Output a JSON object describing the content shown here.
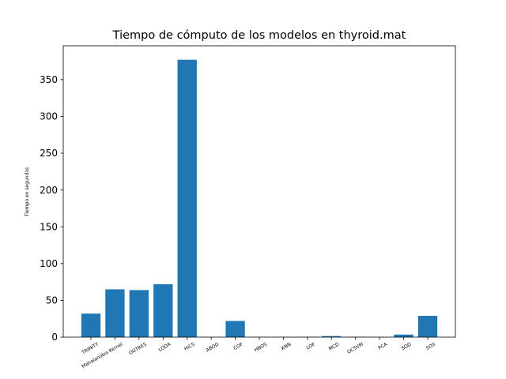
{
  "chart_data": {
    "type": "bar",
    "title": "Tiempo de cómputo de los modelos en thyroid.mat",
    "xlabel": "",
    "ylabel": "Tiempo en segundos",
    "categories": [
      "TRINITY",
      "Mahalanobis Kernel",
      "OUTRES",
      "LODA",
      "HiCS",
      "ABOD",
      "COF",
      "HBOS",
      "KNN",
      "LOF",
      "MCD",
      "OCSVM",
      "PCA",
      "SOD",
      "SOS"
    ],
    "values": [
      32,
      65,
      64,
      72,
      377,
      0.2,
      22,
      0.3,
      0.3,
      0.4,
      1.5,
      0.5,
      0.2,
      3.5,
      29
    ],
    "ylim": [
      0,
      396
    ],
    "yticks": [
      0,
      50,
      100,
      150,
      200,
      250,
      300,
      350
    ],
    "bar_color": "#1f77b4",
    "grid": false,
    "legend": "none"
  }
}
